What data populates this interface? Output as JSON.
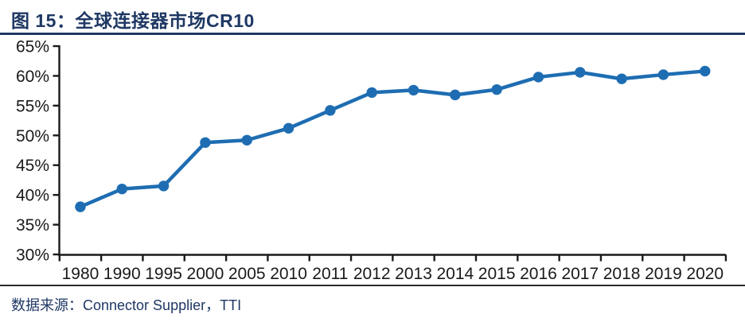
{
  "figure": {
    "title": "图 15：全球连接器市场CR10",
    "source": "数据来源：Connector Supplier，TTI"
  },
  "chart_data": {
    "type": "line",
    "title": "全球连接器市场CR10",
    "categories": [
      "1980",
      "1990",
      "1995",
      "2000",
      "2005",
      "2010",
      "2011",
      "2012",
      "2013",
      "2014",
      "2015",
      "2016",
      "2017",
      "2018",
      "2019",
      "2020"
    ],
    "series": [
      {
        "name": "CR10",
        "values": [
          38.0,
          41.0,
          41.5,
          48.8,
          49.2,
          51.2,
          54.2,
          57.2,
          57.6,
          56.8,
          57.7,
          59.8,
          60.6,
          59.5,
          60.2,
          60.8
        ]
      }
    ],
    "xlabel": "",
    "ylabel": "",
    "ylim": [
      30,
      65
    ],
    "yticks": [
      {
        "value": 65,
        "label": "65%"
      },
      {
        "value": 60,
        "label": "60%"
      },
      {
        "value": 55,
        "label": "55%"
      },
      {
        "value": 50,
        "label": "50%"
      },
      {
        "value": 45,
        "label": "45%"
      },
      {
        "value": 40,
        "label": "40%"
      },
      {
        "value": 35,
        "label": "35%"
      },
      {
        "value": 30,
        "label": "30%"
      }
    ],
    "grid": false,
    "legend_position": "none",
    "marker": "circle",
    "line_color": "#1E6DB2",
    "axis_color": "#1A1A1A"
  },
  "colors": {
    "title": "#1F3864",
    "title_rule": "#1F3864",
    "source_rule": "#2B2B2B",
    "source_text": "#1F3864",
    "background": "#FFFFFF"
  }
}
